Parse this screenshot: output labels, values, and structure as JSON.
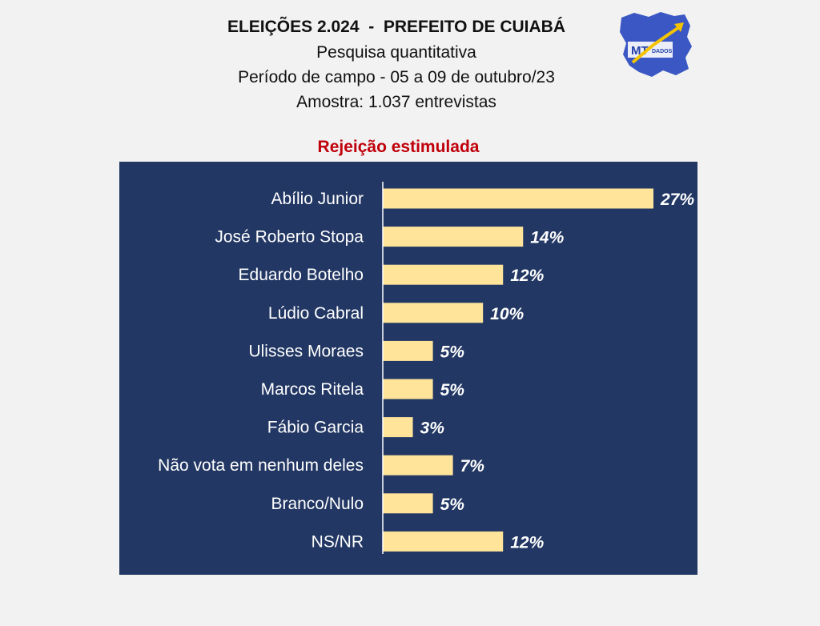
{
  "header": {
    "title": "ELEIÇÕES 2.024  -  PREFEITO DE CUIABÁ",
    "line1": "Pesquisa quantitativa",
    "line2": "Período de campo - 05 a 09 de outubro/23",
    "line3": "Amostra: 1.037 entrevistas"
  },
  "logo": {
    "text_main": "MT",
    "text_small": "DADOS"
  },
  "colors": {
    "page_background": "#f2f2f2",
    "panel_background": "#223763",
    "bar_fill": "#ffe49a",
    "subtitle": "#c0000b",
    "label_text": "#ffffff"
  },
  "chart_data": {
    "type": "bar",
    "orientation": "horizontal",
    "title": "Rejeição estimulada",
    "categories": [
      "Abílio Junior",
      "José Roberto Stopa",
      "Eduardo Botelho",
      "Lúdio Cabral",
      "Ulisses Moraes",
      "Marcos Ritela",
      "Fábio Garcia",
      "Não vota em nenhum deles",
      "Branco/Nulo",
      "NS/NR"
    ],
    "values": [
      27,
      14,
      12,
      10,
      5,
      5,
      3,
      7,
      5,
      12
    ],
    "value_labels": [
      "27%",
      "14%",
      "12%",
      "10%",
      "5%",
      "5%",
      "3%",
      "7%",
      "5%",
      "12%"
    ],
    "unit": "%",
    "xlim": [
      0,
      27
    ],
    "grid": false,
    "legend": "none"
  }
}
